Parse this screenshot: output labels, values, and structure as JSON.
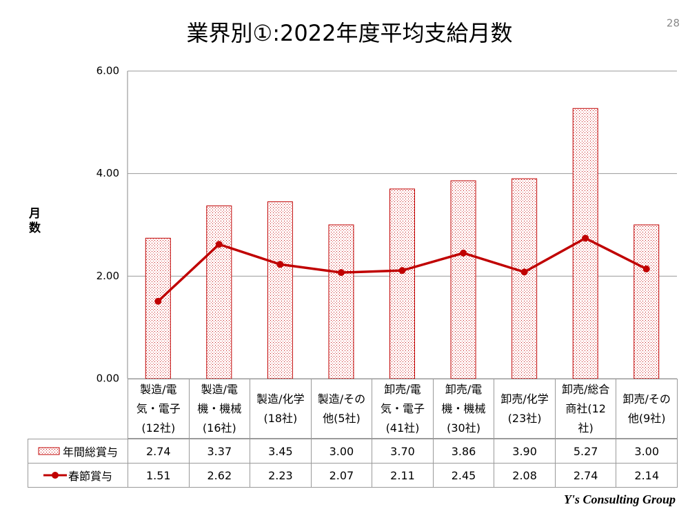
{
  "page_number": "28",
  "footer": "Y's Consulting Group",
  "chart_data": {
    "type": "combo",
    "title": "業界別①:2022年度平均支給月数",
    "y_label": "月数",
    "categories": [
      "製造/電気・電子(12社)",
      "製造/電機・機械(16社)",
      "製造/化学(18社)",
      "製造/その他(5社)",
      "卸売/電気・電子(41社)",
      "卸売/電機・機械(30社)",
      "卸売/化学(23社)",
      "卸売/総合商社(12社)",
      "卸売/その他(9社)"
    ],
    "series": [
      {
        "name": "年間総賞与",
        "type": "bar",
        "color": "#c00000",
        "values": [
          2.74,
          3.37,
          3.45,
          3,
          3.7,
          3.86,
          3.9,
          5.27,
          3
        ],
        "value_labels": [
          "2.74",
          "3.37",
          "3.45",
          "3.00",
          "3.70",
          "3.86",
          "3.90",
          "5.27",
          "3.00"
        ]
      },
      {
        "name": "春節賞与",
        "type": "line",
        "color": "#c00000",
        "values": [
          1.51,
          2.62,
          2.23,
          2.07,
          2.11,
          2.45,
          2.08,
          2.74,
          2.14
        ],
        "value_labels": [
          "1.51",
          "2.62",
          "2.23",
          "2.07",
          "2.11",
          "2.45",
          "2.08",
          "2.74",
          "2.14"
        ]
      }
    ],
    "ylim": [
      0,
      6
    ],
    "yticks": [
      {
        "value": 0,
        "label": "0.00"
      },
      {
        "value": 2,
        "label": "2.00"
      },
      {
        "value": 4,
        "label": "4.00"
      },
      {
        "value": 6,
        "label": "6.00"
      }
    ],
    "grid": true
  }
}
